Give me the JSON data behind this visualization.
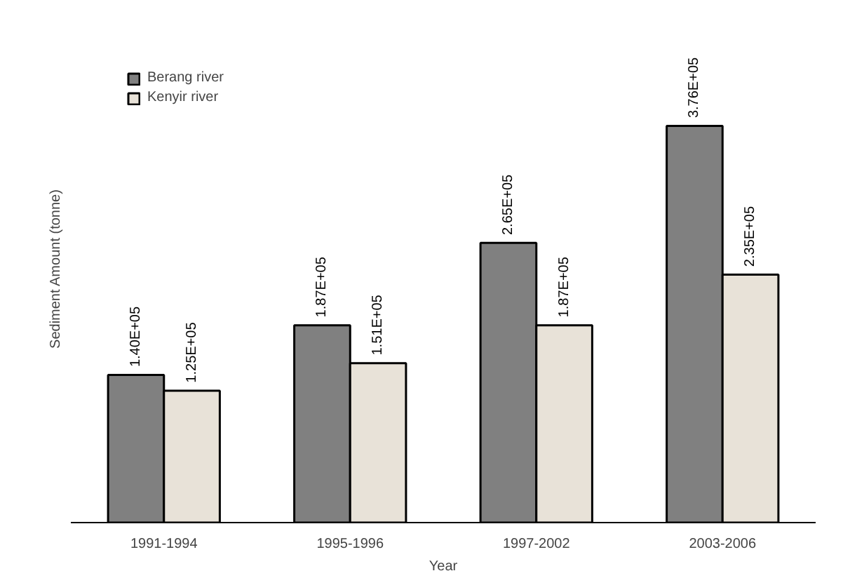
{
  "chart_data": {
    "type": "bar",
    "xlabel": "Year",
    "ylabel": "Sediment Amount (tonne)",
    "categories": [
      "1991-1994",
      "1995-1996",
      "1997-2002",
      "2003-2006"
    ],
    "series": [
      {
        "name": "Berang river",
        "color": "#808080",
        "values": [
          140000,
          187000,
          265000,
          376000
        ],
        "value_labels": [
          "1.40E+05",
          "1.87E+05",
          "2.65E+05",
          "3.76E+05"
        ]
      },
      {
        "name": "Kenyir river",
        "color": "#e8e2d8",
        "values": [
          125000,
          151000,
          187000,
          235000
        ],
        "value_labels": [
          "1.25E+05",
          "1.51E+05",
          "1.87E+05",
          "2.35E+05"
        ]
      }
    ],
    "legend": "top left",
    "grid": false
  }
}
